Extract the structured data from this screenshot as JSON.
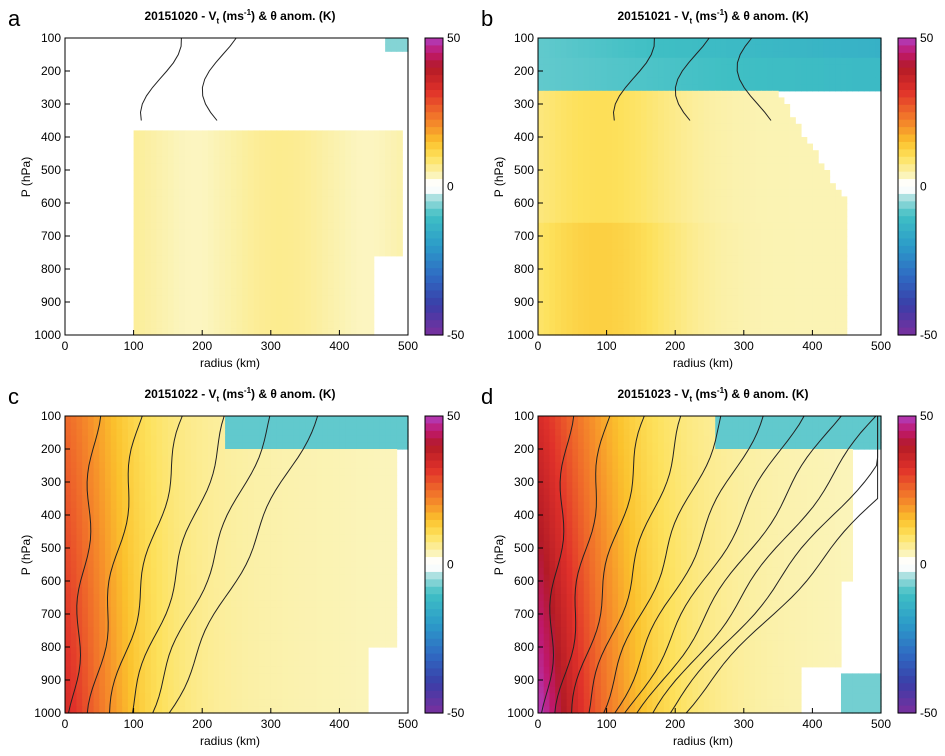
{
  "chart_data": [
    {
      "type": "heatmap",
      "letter": "a",
      "title": "20151020 - V",
      "title_sub": "t",
      "title_unit": " (ms",
      "title_exp": "-1",
      "title_rest": ") & θ anom. (K)",
      "xlabel": "radius (km)",
      "ylabel": "P (hPa)",
      "xlim": [
        0,
        500
      ],
      "ylim": [
        1000,
        100
      ],
      "x_ticks": [
        "0",
        "100",
        "200",
        "300",
        "400",
        "500"
      ],
      "y_ticks": [
        "100",
        "200",
        "300",
        "400",
        "500",
        "600",
        "700",
        "800",
        "900",
        "1000"
      ],
      "colorbar": {
        "min": -50,
        "max": 50,
        "labels": [
          "50",
          "0",
          "-50"
        ]
      },
      "warm_peak_K": 5,
      "warm_region": "uniform weak warm anomaly 400-1000 hPa, 120-500 km",
      "vt_contours": "sparse, only upper levels near 100-350 hPa"
    },
    {
      "type": "heatmap",
      "letter": "b",
      "title": "20151021 - V",
      "title_sub": "t",
      "title_unit": " (ms",
      "title_exp": "-1",
      "title_rest": ") & θ anom. (K)",
      "xlabel": "radius (km)",
      "ylabel": "P (hPa)",
      "xlim": [
        0,
        500
      ],
      "ylim": [
        1000,
        100
      ],
      "x_ticks": [
        "0",
        "100",
        "200",
        "300",
        "400",
        "500"
      ],
      "y_ticks": [
        "100",
        "200",
        "300",
        "400",
        "500",
        "600",
        "700",
        "800",
        "900",
        "1000"
      ],
      "colorbar": {
        "min": -50,
        "max": 50,
        "labels": [
          "50",
          "0",
          "-50"
        ]
      },
      "warm_peak_K": 10,
      "cold_region": "cool anomaly above 300 hPa",
      "vt_contours": "weak"
    },
    {
      "type": "heatmap",
      "letter": "c",
      "title": "20151022 - V",
      "title_sub": "t",
      "title_unit": " (ms",
      "title_exp": "-1",
      "title_rest": ") & θ anom. (K)",
      "xlabel": "radius (km)",
      "ylabel": "P (hPa)",
      "xlim": [
        0,
        500
      ],
      "ylim": [
        1000,
        100
      ],
      "x_ticks": [
        "0",
        "100",
        "200",
        "300",
        "400",
        "500"
      ],
      "y_ticks": [
        "100",
        "200",
        "300",
        "400",
        "500",
        "600",
        "700",
        "800",
        "900",
        "1000"
      ],
      "colorbar": {
        "min": -50,
        "max": 50,
        "labels": [
          "50",
          "0",
          "-50"
        ]
      },
      "warm_peak_K": 25,
      "vt_contours": "concentrated near core"
    },
    {
      "type": "heatmap",
      "letter": "d",
      "title": "20151023 - V",
      "title_sub": "t",
      "title_unit": " (ms",
      "title_exp": "-1",
      "title_rest": ") & θ anom. (K)",
      "xlabel": "radius (km)",
      "ylabel": "P (hPa)",
      "xlim": [
        0,
        500
      ],
      "ylim": [
        1000,
        100
      ],
      "x_ticks": [
        "0",
        "100",
        "200",
        "300",
        "400",
        "500"
      ],
      "y_ticks": [
        "100",
        "200",
        "300",
        "400",
        "500",
        "600",
        "700",
        "800",
        "900",
        "1000"
      ],
      "colorbar": {
        "min": -50,
        "max": 50,
        "labels": [
          "50",
          "0",
          "-50"
        ]
      },
      "warm_peak_K": 40,
      "vt_contours": "dense, many contours near core"
    }
  ]
}
